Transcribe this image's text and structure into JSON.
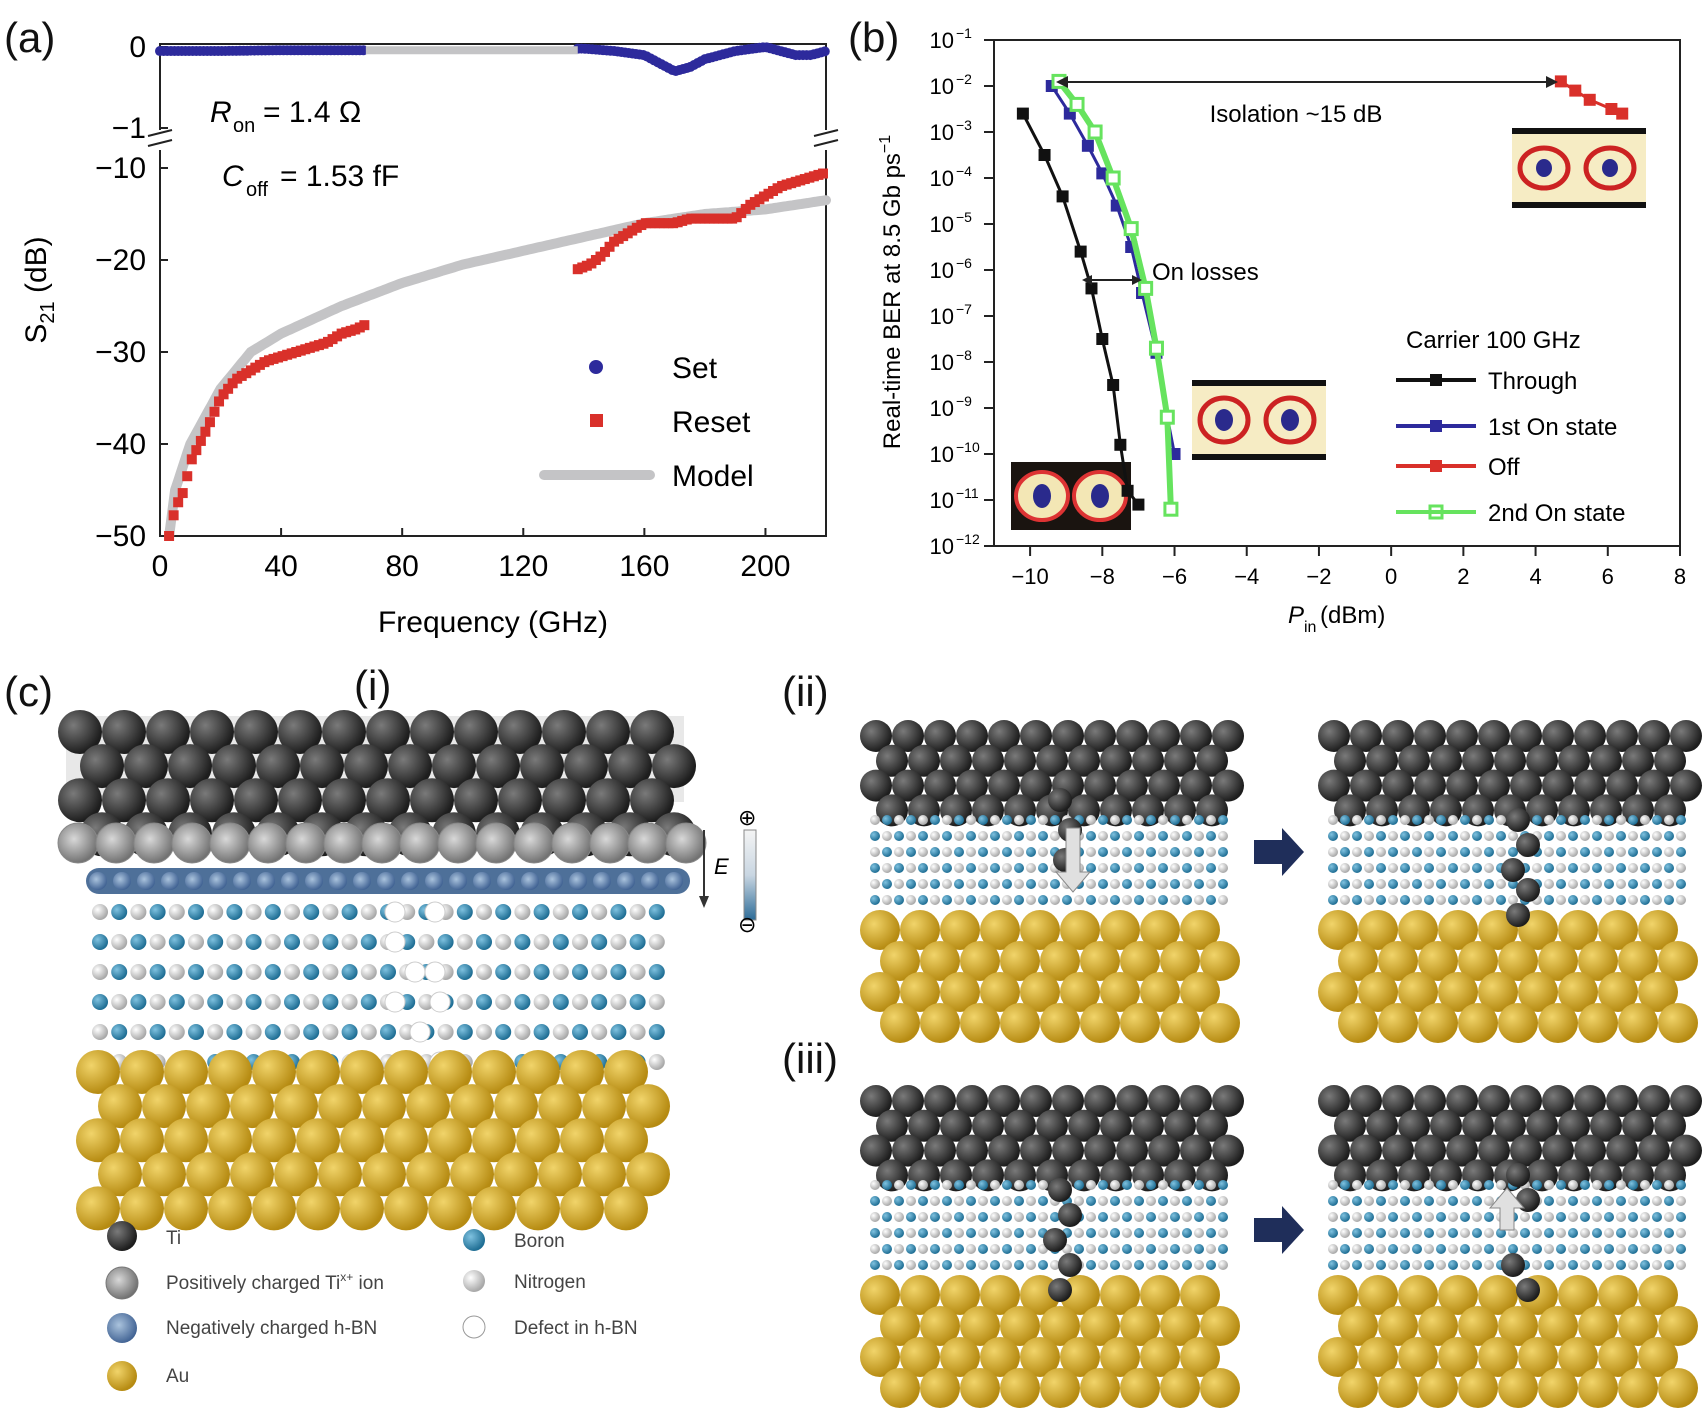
{
  "panels": {
    "a": "(a)",
    "b": "(b)",
    "c": "(c)",
    "c_i": "(i)",
    "c_ii": "(ii)",
    "c_iii": "(iii)"
  },
  "colors": {
    "set": "#2d2a9c",
    "reset": "#d9302a",
    "model": "#c4c4c6",
    "through": "#111111",
    "on1": "#2d2a9c",
    "off": "#d9302a",
    "on2": "#66e35e",
    "ti": "#3a3a3a",
    "boron": "#2e7fa8",
    "nitrogen": "#cfcfcf",
    "au": "#d4ac2c",
    "arrow": "#1f2e5a"
  },
  "chart_data": [
    {
      "type": "scatter",
      "xlabel": "Frequency (GHz)",
      "ylabel": "S21 (dB)",
      "xlim": [
        0,
        220
      ],
      "ylim_upper": [
        -1,
        0
      ],
      "ylim_lower": [
        -50,
        -10
      ],
      "xticks": [
        "0",
        "40",
        "80",
        "120",
        "160",
        "200"
      ],
      "yticks_upper": [
        "0",
        "−1"
      ],
      "yticks_lower": [
        "−10",
        "−20",
        "−30",
        "−40",
        "−50"
      ],
      "annotations": {
        "ron": "R",
        "ron_sub": "on",
        "ron_val": " = 1.4 Ω",
        "coff": "C",
        "coff_sub": "off",
        "coff_val": " = 1.53 fF"
      },
      "legend_position": "bottom-right",
      "series": [
        {
          "name": "Set",
          "axis": "upper",
          "x": [
            0,
            20,
            40,
            60,
            70,
            140,
            150,
            160,
            165,
            170,
            175,
            180,
            190,
            200,
            205,
            210,
            215,
            220
          ],
          "y": [
            -0.05,
            -0.05,
            -0.04,
            -0.04,
            -0.04,
            -0.02,
            -0.05,
            -0.1,
            -0.2,
            -0.3,
            -0.25,
            -0.15,
            -0.05,
            0.0,
            -0.05,
            -0.1,
            -0.1,
            -0.05
          ]
        },
        {
          "name": "Reset",
          "axis": "lower",
          "x": [
            3,
            5,
            8,
            10,
            13,
            16,
            20,
            25,
            30,
            35,
            40,
            45,
            50,
            55,
            60,
            65,
            68,
            138,
            142,
            146,
            150,
            155,
            160,
            165,
            170,
            175,
            180,
            185,
            190,
            195,
            200,
            205,
            210,
            215,
            220
          ],
          "y": [
            -50,
            -47,
            -45,
            -42,
            -40,
            -38,
            -35,
            -33,
            -32,
            -31,
            -30.5,
            -30,
            -29.5,
            -29,
            -28,
            -27.5,
            -27,
            -21,
            -20.5,
            -19.5,
            -18,
            -17,
            -16,
            -16,
            -16,
            -15.5,
            -15.5,
            -15.5,
            -15.5,
            -14,
            -13,
            -12,
            -11.5,
            -11,
            -10.5
          ]
        },
        {
          "name": "Model",
          "axis": "lower",
          "x": [
            3,
            5,
            8,
            10,
            15,
            20,
            30,
            40,
            60,
            80,
            100,
            120,
            140,
            160,
            180,
            200,
            220
          ],
          "y": [
            -50,
            -45,
            -42,
            -40,
            -37,
            -34,
            -30,
            -28,
            -25,
            -22.5,
            -20.5,
            -19,
            -17.5,
            -16,
            -15,
            -14.5,
            -13.5
          ]
        }
      ]
    },
    {
      "type": "line",
      "xlabel": "P",
      "xlabel_sub": "in",
      "xlabel_unit": " (dBm)",
      "ylabel": "Real-time BER at 8.5 Gb ps",
      "ylabel_sup": "−1",
      "xlim": [
        -11,
        8
      ],
      "ylim_log10": [
        -12,
        -1
      ],
      "xticks": [
        "−10",
        "−8",
        "−6",
        "−4",
        "−2",
        "0",
        "2",
        "4",
        "6",
        "8"
      ],
      "annotations": {
        "isolation": "Isolation ~15 dB",
        "on_losses": "On losses",
        "legend_title": "Carrier 100 GHz"
      },
      "series": [
        {
          "name": "Through",
          "x": [
            -10.2,
            -9.6,
            -9.1,
            -8.6,
            -8.3,
            -8.0,
            -7.7,
            -7.5,
            -7.3,
            -7.0
          ],
          "log10_y": [
            -2.6,
            -3.5,
            -4.4,
            -5.6,
            -6.4,
            -7.5,
            -8.5,
            -9.8,
            -10.8,
            -11.1
          ]
        },
        {
          "name": "1st On state",
          "x": [
            -9.4,
            -8.9,
            -8.4,
            -8.0,
            -7.6,
            -7.2,
            -6.9,
            -6.5,
            -6.2,
            -6.0
          ],
          "log10_y": [
            -2.0,
            -2.6,
            -3.3,
            -3.9,
            -4.6,
            -5.5,
            -6.5,
            -7.8,
            -9.2,
            -10.0
          ]
        },
        {
          "name": "Off",
          "x": [
            4.7,
            5.1,
            5.5,
            6.1,
            6.4
          ],
          "log10_y": [
            -1.9,
            -2.1,
            -2.3,
            -2.5,
            -2.6
          ]
        },
        {
          "name": "2nd On state",
          "x": [
            -9.2,
            -8.7,
            -8.2,
            -7.7,
            -7.2,
            -6.8,
            -6.5,
            -6.2,
            -6.1
          ],
          "log10_y": [
            -1.9,
            -2.4,
            -3.0,
            -4.0,
            -5.1,
            -6.4,
            -7.7,
            -9.2,
            -11.2
          ]
        }
      ]
    }
  ],
  "legend_c": {
    "ti": "Ti",
    "ti_ion": "Positively charged Ti",
    "ti_ion_sup": "x+",
    "ti_ion_tail": " ion",
    "hbn_neg": "Negatively charged h-BN",
    "au": "Au",
    "boron": "Boron",
    "nitrogen": "Nitrogen",
    "defect": "Defect in h-BN",
    "efield": "E",
    "plus": "⊕",
    "minus": "⊖"
  }
}
